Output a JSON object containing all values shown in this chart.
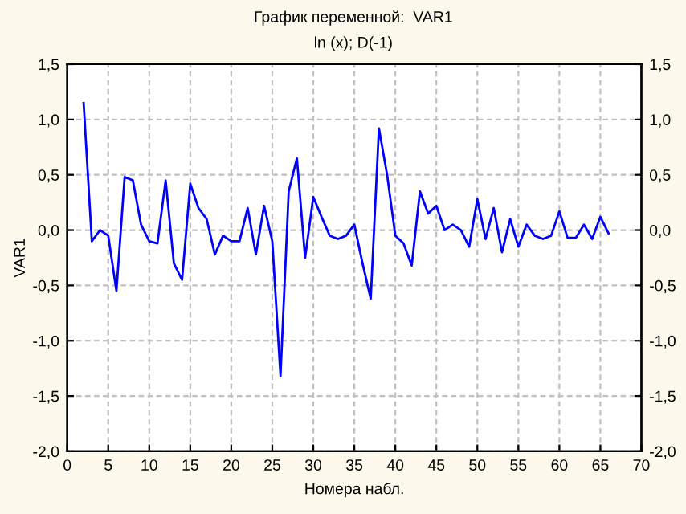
{
  "chart_data": {
    "type": "line",
    "title": "График переменной:  VAR1",
    "subtitle": "ln (x); D(-1)",
    "xlabel": "Номера набл.",
    "ylabel": "VAR1",
    "x": [
      2,
      3,
      4,
      5,
      6,
      7,
      8,
      9,
      10,
      11,
      12,
      13,
      14,
      15,
      16,
      17,
      18,
      19,
      20,
      21,
      22,
      23,
      24,
      25,
      26,
      27,
      28,
      29,
      30,
      31,
      32,
      33,
      34,
      35,
      36,
      37,
      38,
      39,
      40,
      41,
      42,
      43,
      44,
      45,
      46,
      47,
      48,
      49,
      50,
      51,
      52,
      53,
      54,
      55,
      56,
      57,
      58,
      59,
      60,
      61,
      62,
      63,
      64,
      65,
      66
    ],
    "series": [
      {
        "color": "#0000ff",
        "values": [
          1.15,
          -0.1,
          0.0,
          -0.05,
          -0.55,
          0.48,
          0.45,
          0.05,
          -0.1,
          -0.12,
          0.45,
          -0.3,
          -0.45,
          0.42,
          0.2,
          0.1,
          -0.22,
          -0.05,
          -0.1,
          -0.1,
          0.2,
          -0.22,
          0.22,
          -0.1,
          -1.32,
          0.35,
          0.65,
          -0.25,
          0.3,
          0.12,
          -0.05,
          -0.08,
          -0.05,
          0.05,
          -0.3,
          -0.62,
          0.92,
          0.5,
          -0.05,
          -0.12,
          -0.32,
          0.35,
          0.15,
          0.22,
          0.0,
          0.05,
          0.0,
          -0.15,
          0.28,
          -0.08,
          0.2,
          -0.2,
          0.1,
          -0.15,
          0.05,
          -0.05,
          -0.08,
          -0.05,
          0.17,
          -0.07,
          -0.07,
          0.05,
          -0.08,
          0.12,
          -0.03
        ]
      }
    ],
    "xlim": [
      0,
      70
    ],
    "xticks": [
      0,
      5,
      10,
      15,
      20,
      25,
      30,
      35,
      40,
      45,
      50,
      55,
      60,
      65,
      70
    ],
    "ylim": [
      -2.0,
      1.5
    ],
    "yticks": [
      {
        "value": -2.0,
        "label": "-2,0"
      },
      {
        "value": -1.5,
        "label": "-1,5"
      },
      {
        "value": -1.0,
        "label": "-1,0"
      },
      {
        "value": -0.5,
        "label": "-0,5"
      },
      {
        "value": 0.0,
        "label": "0,0"
      },
      {
        "value": 0.5,
        "label": "0,5"
      },
      {
        "value": 1.0,
        "label": "1,0"
      },
      {
        "value": 1.5,
        "label": "1,5"
      }
    ],
    "y2lim": [
      -2.0,
      1.5
    ],
    "y2ticks": [
      {
        "value": -2.0,
        "label": "-2,0"
      },
      {
        "value": -1.5,
        "label": "-1,5"
      },
      {
        "value": -1.0,
        "label": "-1,0"
      },
      {
        "value": -0.5,
        "label": "-0,5"
      },
      {
        "value": 0.0,
        "label": "0,0"
      },
      {
        "value": 0.5,
        "label": "0,5"
      },
      {
        "value": 1.0,
        "label": "1,0"
      },
      {
        "value": 1.5,
        "label": "1,5"
      }
    ],
    "grid": true,
    "marker": "none",
    "line_style": "solid",
    "legend": false
  }
}
